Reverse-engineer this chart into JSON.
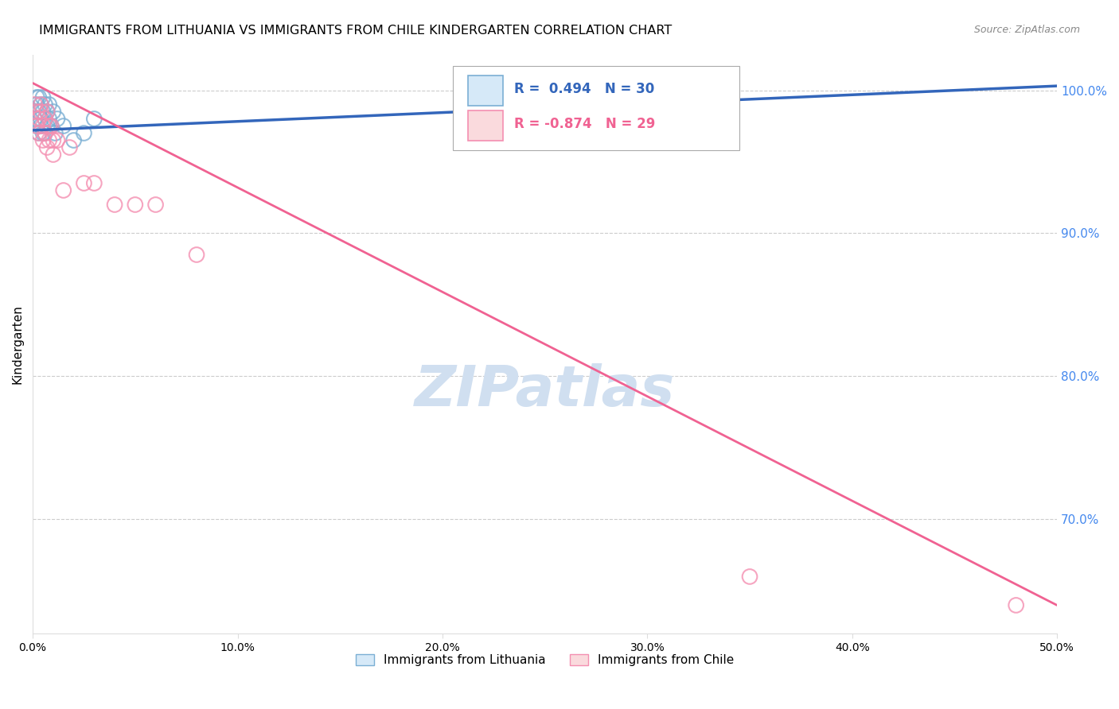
{
  "title": "IMMIGRANTS FROM LITHUANIA VS IMMIGRANTS FROM CHILE KINDERGARTEN CORRELATION CHART",
  "source": "Source: ZipAtlas.com",
  "ylabel": "Kindergarten",
  "xmin": 0.0,
  "xmax": 0.5,
  "ymin": 0.62,
  "ymax": 1.025,
  "y_ticks": [
    0.7,
    0.8,
    0.9,
    1.0
  ],
  "y_tick_labels": [
    "70.0%",
    "80.0%",
    "90.0%",
    "100.0%"
  ],
  "x_tick_labels": [
    "0.0%",
    "10.0%",
    "20.0%",
    "30.0%",
    "40.0%",
    "50.0%"
  ],
  "x_ticks": [
    0.0,
    0.1,
    0.2,
    0.3,
    0.4,
    0.5
  ],
  "legend_bottom_labels": [
    "Immigrants from Lithuania",
    "Immigrants from Chile"
  ],
  "legend_r_lithuania": "R =  0.494",
  "legend_n_lithuania": "N = 30",
  "legend_r_chile": "R = -0.874",
  "legend_n_chile": "N = 29",
  "color_lithuania": "#7BAFD4",
  "color_chile": "#F48FB1",
  "color_trendline_lithuania": "#3366BB",
  "color_trendline_chile": "#F06292",
  "color_right_axis": "#4488EE",
  "watermark_color": "#D0DFF0",
  "lithuania_x": [
    0.001,
    0.002,
    0.002,
    0.002,
    0.003,
    0.003,
    0.003,
    0.004,
    0.004,
    0.004,
    0.005,
    0.005,
    0.005,
    0.006,
    0.006,
    0.006,
    0.007,
    0.007,
    0.008,
    0.008,
    0.009,
    0.01,
    0.011,
    0.012,
    0.015,
    0.02,
    0.025,
    0.03,
    0.285,
    0.295
  ],
  "lithuania_y": [
    0.98,
    0.995,
    0.975,
    0.99,
    0.985,
    0.97,
    0.995,
    0.975,
    0.99,
    0.98,
    0.985,
    0.97,
    0.995,
    0.98,
    0.97,
    0.99,
    0.985,
    0.975,
    0.98,
    0.99,
    0.975,
    0.985,
    0.97,
    0.98,
    0.975,
    0.965,
    0.97,
    0.98,
    0.998,
    0.995
  ],
  "chile_x": [
    0.001,
    0.002,
    0.002,
    0.003,
    0.003,
    0.004,
    0.004,
    0.005,
    0.005,
    0.006,
    0.006,
    0.007,
    0.007,
    0.008,
    0.008,
    0.009,
    0.01,
    0.01,
    0.012,
    0.015,
    0.018,
    0.025,
    0.03,
    0.04,
    0.05,
    0.06,
    0.08,
    0.35,
    0.48
  ],
  "chile_y": [
    0.99,
    0.985,
    0.975,
    0.98,
    0.97,
    0.99,
    0.985,
    0.975,
    0.965,
    0.98,
    0.97,
    0.985,
    0.96,
    0.975,
    0.965,
    0.975,
    0.965,
    0.955,
    0.965,
    0.93,
    0.96,
    0.935,
    0.935,
    0.92,
    0.92,
    0.92,
    0.885,
    0.66,
    0.64
  ],
  "chile_trendline_x0": 0.0,
  "chile_trendline_y0": 1.005,
  "chile_trendline_x1": 0.5,
  "chile_trendline_y1": 0.64,
  "lith_trendline_x0": 0.0,
  "lith_trendline_y0": 0.972,
  "lith_trendline_x1": 0.5,
  "lith_trendline_y1": 1.003
}
